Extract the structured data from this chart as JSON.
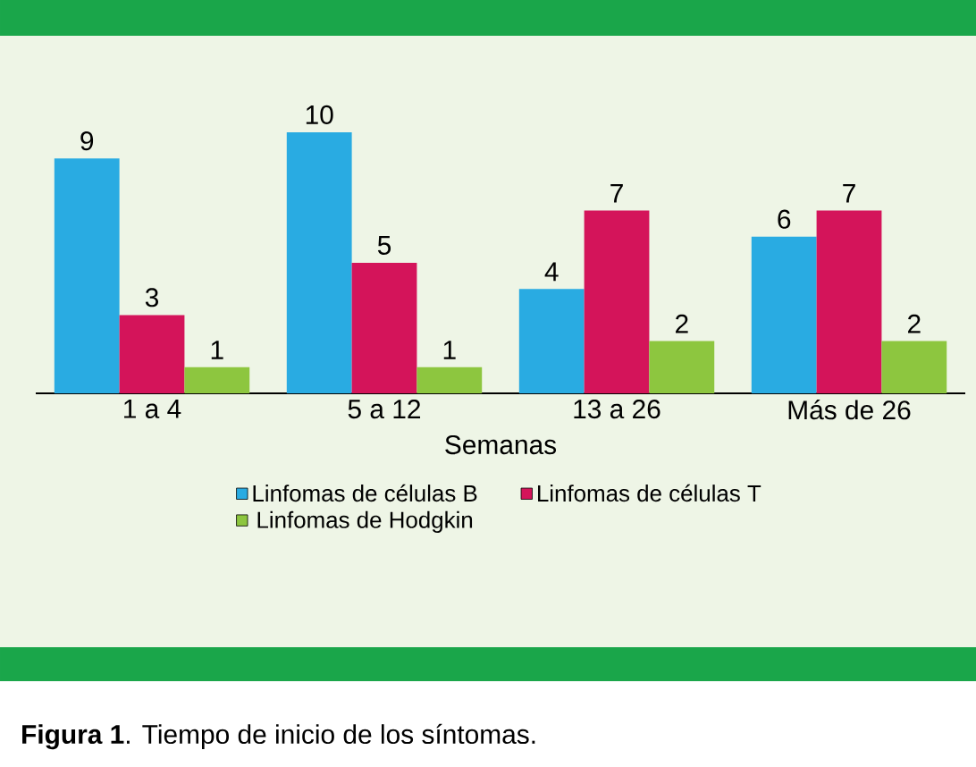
{
  "chart_data": {
    "type": "bar",
    "categories": [
      "1 a 4",
      "5 a 12",
      "13 a 26",
      "Más de 26"
    ],
    "xlabel": "Semanas",
    "series": [
      {
        "name": "Linfomas de células B",
        "color": "#29abe2",
        "values": [
          9,
          10,
          4,
          6
        ]
      },
      {
        "name": "Linfomas de células T",
        "color": "#d4145a",
        "values": [
          3,
          5,
          7,
          7
        ]
      },
      {
        "name": "Linfomas de Hodgkin",
        "color": "#8dc63f",
        "values": [
          1,
          1,
          2,
          2
        ]
      }
    ],
    "data_labels": true,
    "legend": "bottom",
    "annotations": [
      "**Figura 1**. Tiempo de inicio de los síntomas."
    ]
  }
}
